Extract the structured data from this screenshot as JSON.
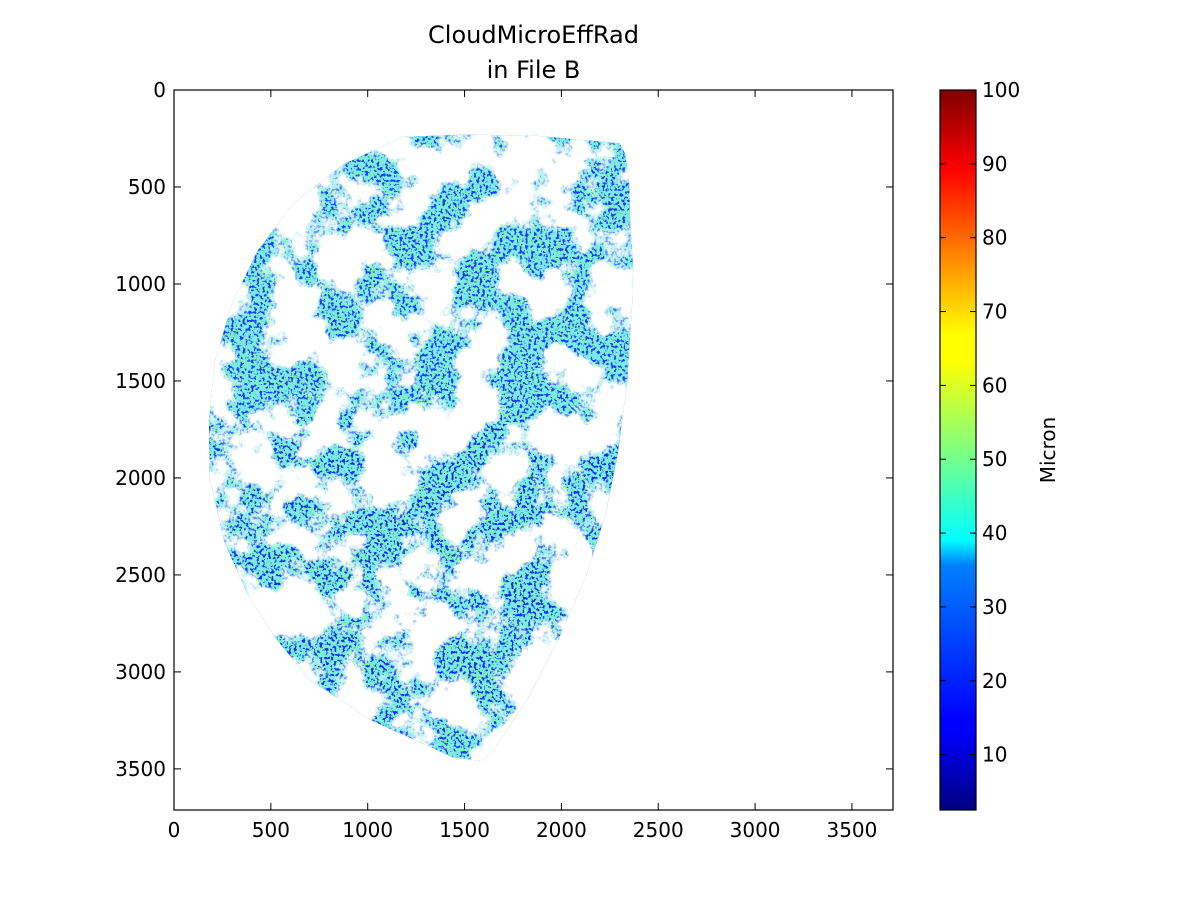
{
  "chart_data": {
    "type": "heatmap",
    "title_lines": [
      "CloudMicroEffRad",
      "in File B"
    ],
    "xlabel": "",
    "ylabel": "",
    "xlim": [
      0,
      3712
    ],
    "ylim": [
      3712,
      0
    ],
    "x_ticks": [
      0,
      500,
      1000,
      1500,
      2000,
      2500,
      3000,
      3500
    ],
    "y_ticks": [
      0,
      500,
      1000,
      1500,
      2000,
      2500,
      3000,
      3500
    ],
    "colormap": "jet",
    "colorbar": {
      "label": "Micron",
      "range": [
        2.5,
        100
      ],
      "ticks": [
        10,
        20,
        30,
        40,
        50,
        60,
        70,
        80,
        90,
        100
      ]
    },
    "data_region": {
      "shape": "partial Earth disk (western half visible, right part missing)",
      "x_extent": [
        180,
        2370
      ],
      "y_extent": [
        230,
        3460
      ],
      "missing_value_color": "#ffffff"
    },
    "dominant_values": "mostly 5-25 micron (blue), scattered 30-60 micron (cyan/green/yellow)",
    "colors": {
      "frame": "#000000",
      "background": "#ffffff"
    }
  }
}
